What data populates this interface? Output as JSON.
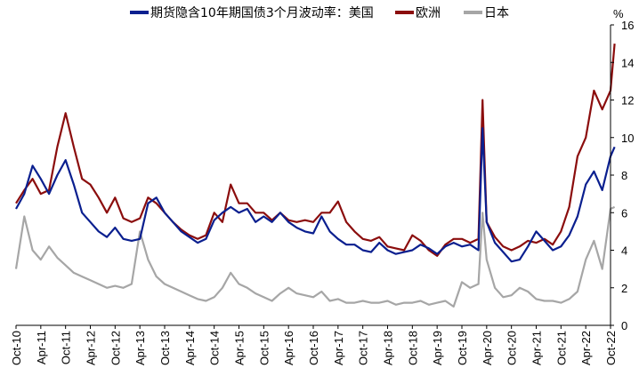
{
  "chart_data": {
    "type": "line",
    "title": "",
    "y_unit": "%",
    "ylim": [
      0,
      16
    ],
    "y_ticks": [
      0,
      2,
      4,
      6,
      8,
      10,
      12,
      14,
      16
    ],
    "grid": false,
    "legend_position": "top",
    "legend": [
      {
        "label": "期货隐含10年期国债3个月波动率：美国",
        "color": "#0a1f8f"
      },
      {
        "label": "欧洲",
        "color": "#8b0d0d"
      },
      {
        "label": "日本",
        "color": "#a6a6a6"
      }
    ],
    "x_ticks": [
      "Oct-10",
      "Apr-11",
      "Oct-11",
      "Apr-12",
      "Oct-12",
      "Apr-13",
      "Oct-13",
      "Apr-14",
      "Oct-14",
      "Apr-15",
      "Oct-15",
      "Apr-16",
      "Oct-16",
      "Apr-17",
      "Oct-17",
      "Apr-18",
      "Oct-18",
      "Apr-19",
      "Oct-19",
      "Apr-20",
      "Oct-20",
      "Apr-21",
      "Oct-21",
      "Apr-22",
      "Oct-22"
    ],
    "x": [
      "2010-10",
      "2010-12",
      "2011-02",
      "2011-04",
      "2011-06",
      "2011-08",
      "2011-10",
      "2011-12",
      "2012-02",
      "2012-04",
      "2012-06",
      "2012-08",
      "2012-10",
      "2012-12",
      "2013-02",
      "2013-04",
      "2013-06",
      "2013-08",
      "2013-10",
      "2013-12",
      "2014-02",
      "2014-04",
      "2014-06",
      "2014-08",
      "2014-10",
      "2014-12",
      "2015-02",
      "2015-04",
      "2015-06",
      "2015-08",
      "2015-10",
      "2015-12",
      "2016-02",
      "2016-04",
      "2016-06",
      "2016-08",
      "2016-10",
      "2016-12",
      "2017-02",
      "2017-04",
      "2017-06",
      "2017-08",
      "2017-10",
      "2017-12",
      "2018-02",
      "2018-04",
      "2018-06",
      "2018-08",
      "2018-10",
      "2018-12",
      "2019-02",
      "2019-04",
      "2019-06",
      "2019-08",
      "2019-10",
      "2019-12",
      "2020-02",
      "2020-03",
      "2020-04",
      "2020-06",
      "2020-08",
      "2020-10",
      "2020-12",
      "2021-02",
      "2021-04",
      "2021-06",
      "2021-08",
      "2021-10",
      "2021-12",
      "2022-02",
      "2022-04",
      "2022-06",
      "2022-08",
      "2022-10",
      "2022-11"
    ],
    "series": [
      {
        "name": "期货隐含10年期国债3个月波动率：美国",
        "color": "#0a1f8f",
        "values": [
          6.2,
          7.0,
          8.5,
          7.8,
          7.0,
          8.0,
          8.8,
          7.5,
          6.0,
          5.5,
          5.0,
          4.7,
          5.2,
          4.6,
          4.5,
          4.6,
          6.5,
          6.8,
          6.0,
          5.5,
          5.0,
          4.7,
          4.4,
          4.6,
          5.6,
          6.0,
          6.3,
          6.0,
          6.2,
          5.5,
          5.8,
          5.5,
          6.0,
          5.5,
          5.2,
          5.0,
          4.9,
          5.8,
          5.0,
          4.6,
          4.3,
          4.3,
          4.0,
          3.9,
          4.4,
          4.0,
          3.8,
          3.9,
          4.0,
          4.3,
          4.1,
          3.8,
          4.2,
          4.4,
          4.2,
          4.3,
          4.0,
          10.5,
          5.5,
          4.4,
          3.9,
          3.4,
          3.5,
          4.2,
          5.0,
          4.5,
          4.0,
          4.2,
          4.8,
          5.8,
          7.5,
          8.2,
          7.2,
          9.0,
          9.5
        ]
      },
      {
        "name": "欧洲",
        "color": "#8b0d0d",
        "values": [
          6.5,
          7.2,
          7.8,
          7.0,
          7.2,
          9.5,
          11.3,
          9.5,
          7.8,
          7.5,
          6.8,
          6.0,
          6.8,
          5.7,
          5.5,
          5.7,
          6.8,
          6.5,
          6.0,
          5.5,
          5.1,
          4.8,
          4.6,
          4.8,
          6.0,
          5.5,
          7.5,
          6.5,
          6.5,
          6.0,
          6.0,
          5.6,
          6.0,
          5.6,
          5.5,
          5.6,
          5.5,
          6.0,
          6.0,
          6.6,
          5.5,
          5.0,
          4.6,
          4.5,
          4.7,
          4.2,
          4.1,
          4.0,
          4.8,
          4.5,
          4.0,
          3.7,
          4.3,
          4.6,
          4.6,
          4.4,
          4.6,
          12.0,
          5.5,
          4.7,
          4.2,
          4.0,
          4.2,
          4.5,
          4.4,
          4.6,
          4.3,
          5.0,
          6.3,
          9.0,
          10.0,
          12.5,
          11.5,
          12.5,
          15.0
        ]
      },
      {
        "name": "日本",
        "color": "#a6a6a6",
        "values": [
          3.0,
          5.8,
          4.0,
          3.5,
          4.2,
          3.6,
          3.2,
          2.8,
          2.6,
          2.4,
          2.2,
          2.0,
          2.1,
          2.0,
          2.2,
          5.0,
          3.5,
          2.6,
          2.2,
          2.0,
          1.8,
          1.6,
          1.4,
          1.3,
          1.5,
          2.0,
          2.8,
          2.2,
          2.0,
          1.7,
          1.5,
          1.3,
          1.7,
          2.0,
          1.7,
          1.6,
          1.5,
          1.8,
          1.3,
          1.4,
          1.2,
          1.2,
          1.3,
          1.2,
          1.2,
          1.3,
          1.1,
          1.2,
          1.2,
          1.3,
          1.1,
          1.2,
          1.3,
          1.0,
          2.3,
          2.0,
          2.2,
          6.0,
          3.5,
          2.0,
          1.5,
          1.6,
          2.0,
          1.8,
          1.4,
          1.3,
          1.3,
          1.2,
          1.4,
          1.8,
          3.5,
          4.5,
          3.0,
          6.2,
          6.3
        ]
      }
    ]
  }
}
